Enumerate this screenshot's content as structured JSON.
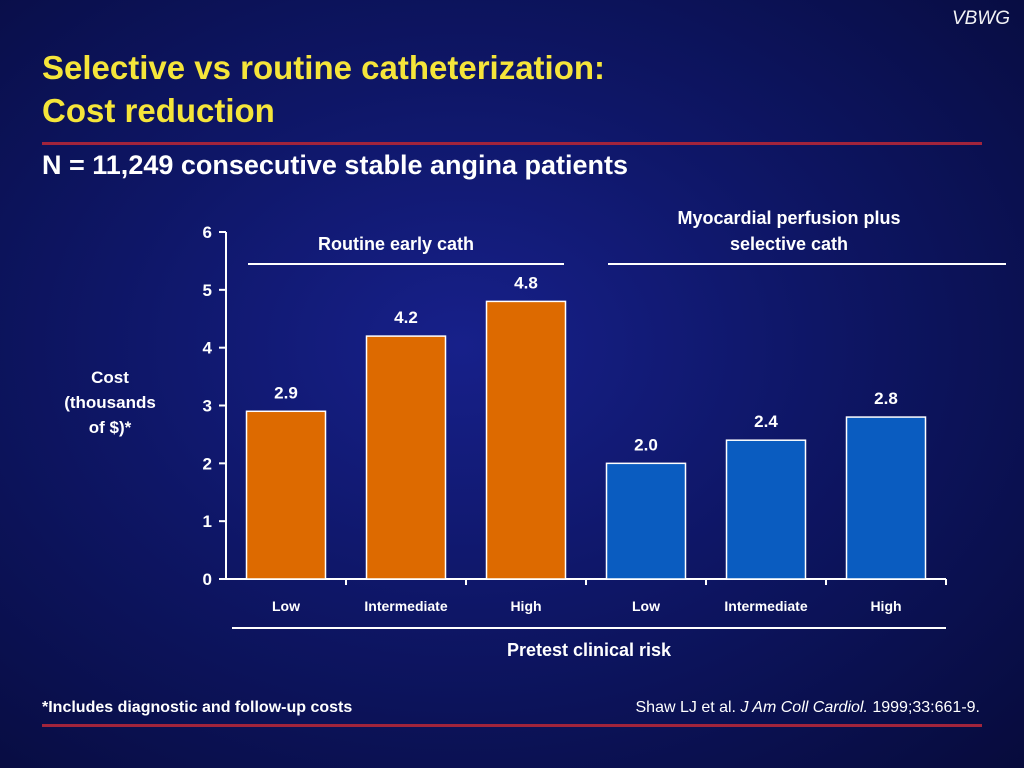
{
  "watermark": "VBWG",
  "title_line1": "Selective vs routine catheterization:",
  "title_line2": "Cost reduction",
  "subtitle": "N = 11,249 consecutive stable angina patients",
  "footnote": "*Includes diagnostic and follow-up costs",
  "citation": {
    "authors": "Shaw LJ et al.",
    "journal": "J Am Coll Cardiol.",
    "details": "1999;33:661-9."
  },
  "colors": {
    "title": "#f5e53a",
    "rule": "#a1243c",
    "routine_bar": "#dd6a00",
    "selective_bar": "#0a5cc0"
  },
  "chart_data": {
    "type": "bar",
    "ylabel": [
      "Cost",
      "(thousands",
      "of $)*"
    ],
    "xlabel": "Pretest clinical risk",
    "ylim": [
      0,
      6
    ],
    "yticks": [
      0,
      1,
      2,
      3,
      4,
      5,
      6
    ],
    "groups": [
      {
        "name": "Routine early cath",
        "header_lines": [
          "Routine early cath"
        ],
        "color": "#dd6a00",
        "categories": [
          "Low",
          "Intermediate",
          "High"
        ],
        "values": [
          2.9,
          4.2,
          4.8
        ],
        "labels": [
          "2.9",
          "4.2",
          "4.8"
        ]
      },
      {
        "name": "Myocardial perfusion plus selective cath",
        "header_lines": [
          "Myocardial perfusion plus",
          "selective cath"
        ],
        "color": "#0a5cc0",
        "categories": [
          "Low",
          "Intermediate",
          "High"
        ],
        "values": [
          2.0,
          2.4,
          2.8
        ],
        "labels": [
          "2.0",
          "2.4",
          "2.8"
        ]
      }
    ]
  }
}
